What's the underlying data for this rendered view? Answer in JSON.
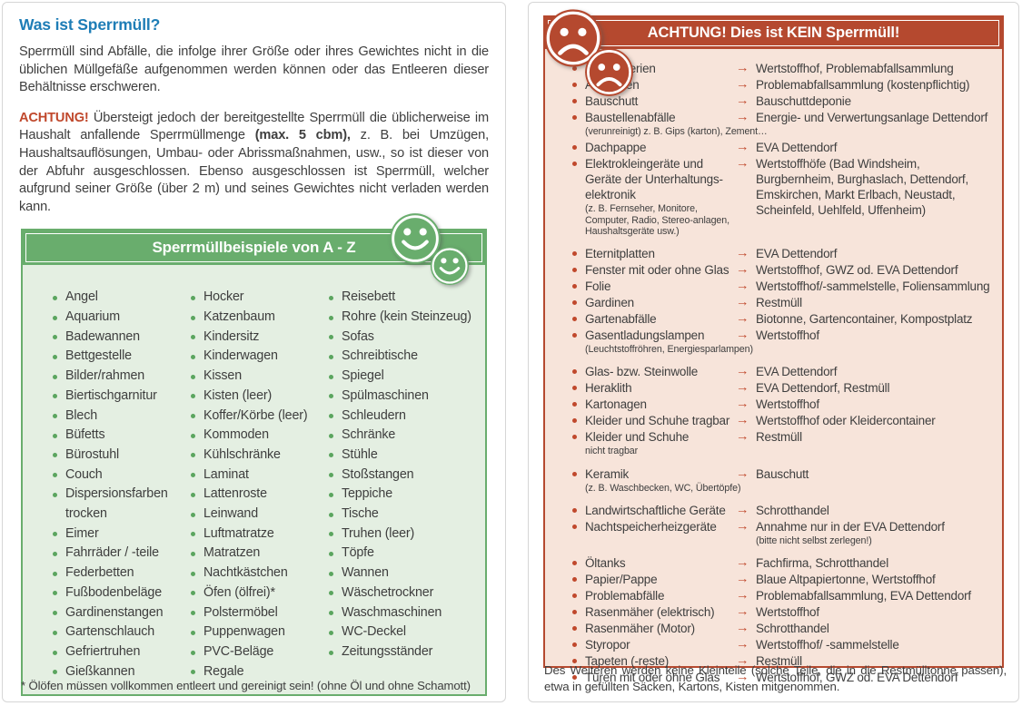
{
  "colors": {
    "blue_heading": "#1e7db6",
    "red": "#b5492f",
    "red_accent": "#c0482c",
    "red_bg": "#f7e4da",
    "green": "#69ad6d",
    "green_bg": "#e4efe2",
    "green_dot": "#5ba55f",
    "text": "#3e3e3e",
    "panel_border": "#d6d6d6"
  },
  "icons": {
    "arrow_glyph": "→",
    "bullet_glyph": "•",
    "happy_icons": "smiley-happy-icon",
    "sad_icons": "smiley-sad-icon"
  },
  "left": {
    "title": "Was ist Sperrmüll?",
    "intro": "Sperrmüll sind Abfälle, die infolge ihrer Größe oder ihres Gewichtes nicht in die üblichen Müllgefäße aufgenommen werden können oder das Entleeren dieser Behältnisse erschweren.",
    "achtung_label": "ACHTUNG!",
    "achtung_before_bold": "Übersteigt jedoch der bereitgestellte Sperrmüll die üblicherweise im Haushalt anfallende Sperrmüllmenge",
    "achtung_bold": "(max. 5 cbm),",
    "achtung_after_bold": "z. B. bei Umzügen, Haushaltsauflösungen, Umbau- oder Abrissmaßnahmen, usw., so ist dieser von der Abfuhr ausgeschlossen. Ebenso ausgeschlossen ist Sperrmüll, welcher aufgrund seiner Größe (über 2 m) und seines Gewichtes nicht verladen werden kann.",
    "examples_title": "Sperrmüllbeispiele von A - Z",
    "examples_columns": [
      [
        "Angel",
        "Aquarium",
        "Badewannen",
        "Bettgestelle",
        "Bilder/rahmen",
        "Biertischgarnitur",
        "Blech",
        "Büfetts",
        "Bürostuhl",
        "Couch",
        "Dispersionsfarben trocken",
        "Eimer",
        "Fahrräder / -teile",
        "Federbetten",
        "Fußbodenbeläge",
        "Gardinenstangen",
        "Gartenschlauch",
        "Gefriertruhen",
        "Gießkannen"
      ],
      [
        "Hocker",
        "Katzenbaum",
        "Kindersitz",
        "Kinderwagen",
        "Kissen",
        "Kisten (leer)",
        "Koffer/Körbe (leer)",
        "Kommoden",
        "Kühlschränke",
        "Laminat",
        "Lattenroste",
        "Leinwand",
        "Luftmatratze",
        "Matratzen",
        "Nachtkästchen",
        "Öfen (ölfrei)*",
        "Polstermöbel",
        "Puppenwagen",
        "PVC-Beläge",
        "Regale"
      ],
      [
        "Reisebett",
        "Rohre (kein Steinzeug)",
        "Sofas",
        "Schreibtische",
        "Spiegel",
        "Spülmaschinen",
        "Schleudern",
        "Schränke",
        "Stühle",
        "Stoßstangen",
        "Teppiche",
        "Tische",
        "Truhen (leer)",
        "Töpfe",
        "Wannen",
        "Wäschetrockner",
        "Waschmaschinen",
        "WC-Deckel",
        "Zeitungsständer"
      ]
    ],
    "footnote": "* Ölöfen müssen vollkommen entleert und gereinigt sein! (ohne Öl und ohne Schamott)"
  },
  "right": {
    "header": "ACHTUNG! Dies ist KEIN Sperrmüll!",
    "rows": [
      {
        "item": "Autobatterien",
        "dest": "Wertstoffhof, Problemabfallsammlung"
      },
      {
        "item": "Autoreifen",
        "dest": "Problemabfallsammlung (kostenpflichtig)"
      },
      {
        "item": "Bauschutt",
        "dest": "Bauschuttdeponie"
      },
      {
        "item": "Baustellenabfälle",
        "item_sub": "(verunreinigt)  z. B. Gips (karton), Zement…",
        "dest": "Energie- und Verwertungsanlage Dettendorf"
      },
      {
        "item": "Dachpappe",
        "dest": "EVA Dettendorf"
      },
      {
        "item": "Elektrokleingeräte und Geräte der Unterhaltungs-elektronik",
        "item_sub": "(z. B. Fernseher, Monitore, Computer, Radio, Stereo-anlagen, Haushaltsgeräte usw.)",
        "sub_narrow": true,
        "dest": "Wertstoffhöfe (Bad Windsheim, Burgbernheim, Burghaslach, Dettendorf, Emskirchen, Markt Erlbach, Neustadt, Scheinfeld, Uehlfeld, Uffenheim)"
      },
      {
        "item": "Eternitplatten",
        "dest": "EVA Dettendorf",
        "gap": true
      },
      {
        "item": "Fenster mit oder ohne Glas",
        "dest": "Wertstoffhof, GWZ od. EVA Dettendorf"
      },
      {
        "item": "Folie",
        "dest": "Wertstoffhof/-sammelstelle, Foliensammlung"
      },
      {
        "item": "Gardinen",
        "dest": "Restmüll"
      },
      {
        "item": "Gartenabfälle",
        "dest": "Biotonne, Gartencontainer, Kompostplatz"
      },
      {
        "item": "Gasentladungslampen",
        "item_sub": "(Leuchtstoffröhren, Energiesparlampen)",
        "dest": "Wertstoffhof"
      },
      {
        "item": "Glas- bzw. Steinwolle",
        "dest": "EVA Dettendorf",
        "gap": true
      },
      {
        "item": "Heraklith",
        "dest": "EVA Dettendorf, Restmüll"
      },
      {
        "item": "Kartonagen",
        "dest": "Wertstoffhof"
      },
      {
        "item": "Kleider und Schuhe tragbar",
        "dest": "Wertstoffhof oder Kleidercontainer"
      },
      {
        "item": "Kleider und Schuhe",
        "item_sub": "nicht tragbar",
        "dest": "Restmüll"
      },
      {
        "item": "Keramik",
        "item_sub": "(z. B. Waschbecken, WC, Übertöpfe)",
        "dest": "Bauschutt",
        "gap": true
      },
      {
        "item": "Landwirtschaftliche Geräte",
        "dest": "Schrotthandel",
        "gap": true
      },
      {
        "item": "Nachtspeicherheizgeräte",
        "dest": "Annahme nur in der EVA Dettendorf",
        "dest_sub": "(bitte nicht selbst zerlegen!)"
      },
      {
        "item": "Öltanks",
        "dest": "Fachfirma, Schrotthandel",
        "gap": true
      },
      {
        "item": "Papier/Pappe",
        "dest": "Blaue Altpapiertonne, Wertstoffhof"
      },
      {
        "item": "Problemabfälle",
        "dest": "Problemabfallsammlung, EVA Dettendorf"
      },
      {
        "item": "Rasenmäher (elektrisch)",
        "dest": "Wertstoffhof"
      },
      {
        "item": "Rasenmäher (Motor)",
        "dest": "Schrotthandel"
      },
      {
        "item": "Styropor",
        "dest": "Wertstoffhof/ -sammelstelle"
      },
      {
        "item": "Tapeten (-reste)",
        "dest": "Restmüll"
      },
      {
        "item": "Türen mit oder ohne Glas",
        "dest": "Wertstoffhof, GWZ od. EVA Dettendorf"
      }
    ],
    "footer": "Des Weiteren werden keine Kleinteile (solche Teile, die in die Restmülltonne passen), etwa in gefüllten Säcken, Kartons, Kisten mitgenommen."
  }
}
